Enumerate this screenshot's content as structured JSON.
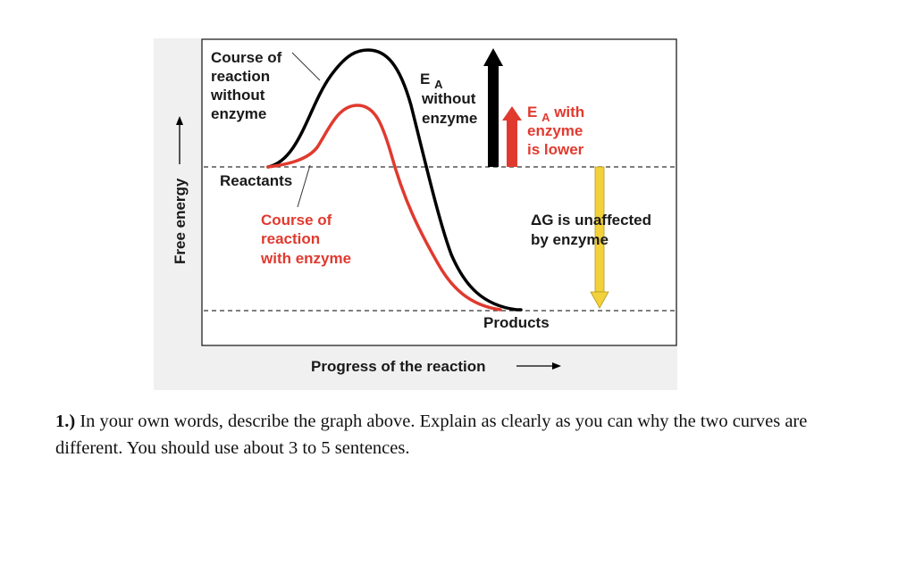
{
  "diagram": {
    "y_axis_label": "Free energy",
    "x_axis_label": "Progress of the reaction",
    "labels": {
      "course_without_line1": "Course of",
      "course_without_line2": "reaction",
      "course_without_line3": "without",
      "course_without_line4": "enzyme",
      "ea_without_e": "E",
      "ea_without_sub": "A",
      "ea_without_line2": "without",
      "ea_without_line3": "enzyme",
      "ea_with_e": "E",
      "ea_with_sub": "A",
      "ea_with_rest": " with",
      "ea_with_line2": "enzyme",
      "ea_with_line3": "is lower",
      "reactants": "Reactants",
      "course_with_line1": "Course of",
      "course_with_line2": "reaction",
      "course_with_line3": "with enzyme",
      "delta_g_line1": "ΔG is unaffected",
      "delta_g_line2": "by enzyme",
      "products": "Products"
    },
    "colors": {
      "without_enzyme": "#000000",
      "with_enzyme": "#e03a2f",
      "delta_g_arrow": "#f2d13b",
      "background": "#f0f0f0"
    }
  },
  "question": {
    "number": "1.)",
    "text": " In your own words, describe the graph above. Explain as clearly as you can why the two curves are different. You should use about 3 to 5 sentences."
  }
}
